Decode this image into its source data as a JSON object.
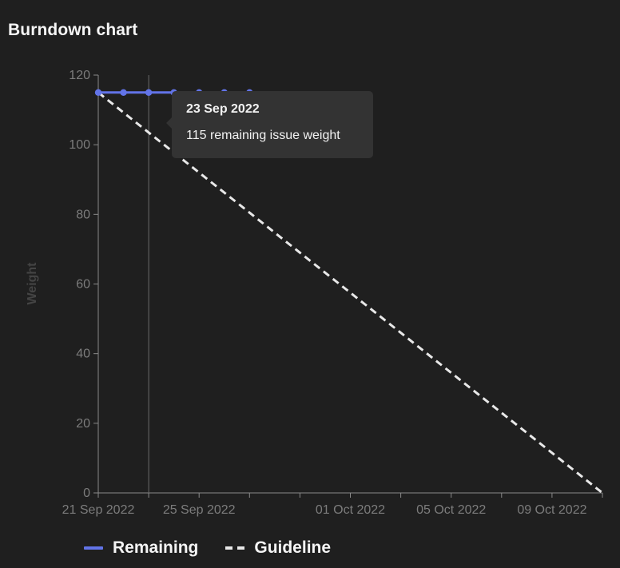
{
  "page": {
    "title": "Burndown chart"
  },
  "tooltip": {
    "date": "23 Sep 2022",
    "text": "115 remaining issue weight"
  },
  "legend": [
    {
      "label": "Remaining",
      "style": "solid",
      "color": "#6274e8"
    },
    {
      "label": "Guideline",
      "style": "dashed",
      "color": "#e8e8e8"
    }
  ],
  "colors": {
    "background": "#1f1f1f",
    "remaining": "#6274e8",
    "guideline": "#e8e8e8",
    "axis": "#8a8a8a",
    "tooltip_bg": "#333333"
  },
  "chart_data": {
    "type": "line",
    "title": "Burndown chart",
    "ylabel": "Weight",
    "xlabel": "",
    "ylim": [
      0,
      120
    ],
    "yticks": [
      0,
      20,
      40,
      60,
      80,
      100,
      120
    ],
    "xlim": [
      "2022-09-21",
      "2022-10-11"
    ],
    "xtick_labels": [
      {
        "date": "2022-09-21",
        "label": "21 Sep 2022"
      },
      {
        "date": "2022-09-25",
        "label": "25 Sep 2022"
      },
      {
        "date": "2022-10-01",
        "label": "01 Oct 2022"
      },
      {
        "date": "2022-10-05",
        "label": "05 Oct 2022"
      },
      {
        "date": "2022-10-09",
        "label": "09 Oct 2022"
      }
    ],
    "xtick_marks": [
      "2022-09-21",
      "2022-09-23",
      "2022-09-25",
      "2022-09-27",
      "2022-09-29",
      "2022-10-01",
      "2022-10-03",
      "2022-10-05",
      "2022-10-07",
      "2022-10-09",
      "2022-10-11"
    ],
    "hover_date": "2022-09-23",
    "series": [
      {
        "name": "Remaining",
        "style": "solid",
        "x": [
          "2022-09-21",
          "2022-09-22",
          "2022-09-23",
          "2022-09-24",
          "2022-09-25",
          "2022-09-26",
          "2022-09-27"
        ],
        "values": [
          115,
          115,
          115,
          115,
          115,
          115,
          115
        ]
      },
      {
        "name": "Guideline",
        "style": "dashed",
        "x": [
          "2022-09-21",
          "2022-10-11"
        ],
        "values": [
          115,
          0
        ]
      }
    ]
  }
}
